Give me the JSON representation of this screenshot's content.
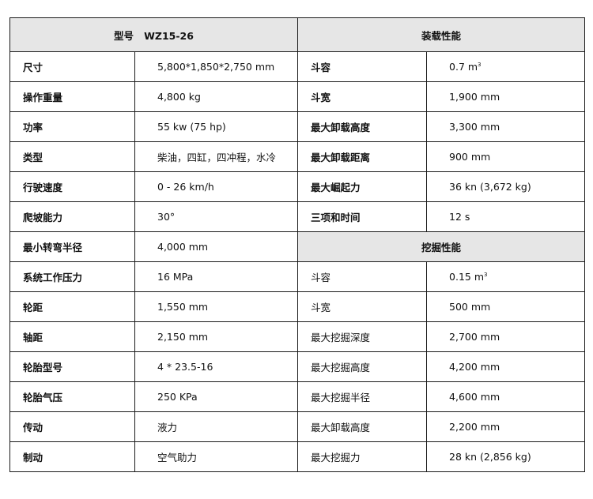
{
  "left_header": {
    "label": "型号",
    "model": "WZ15-26"
  },
  "loading_header": "装载性能",
  "digging_header": "挖掘性能",
  "general_specs": [
    {
      "label": "尺寸",
      "value": "5,800*1,850*2,750 mm"
    },
    {
      "label": "操作重量",
      "value": "4,800 kg"
    },
    {
      "label": "功率",
      "value": "55 kw (75 hp)"
    },
    {
      "label": "类型",
      "value": "柴油，四缸，四冲程，水冷"
    },
    {
      "label": "行驶速度",
      "value": "0 - 26 km/h"
    },
    {
      "label": "爬坡能力",
      "value": "30°"
    },
    {
      "label": "最小转弯半径",
      "value": "4,000 mm"
    },
    {
      "label": "系统工作压力",
      "value": "16 MPa"
    },
    {
      "label": "轮距",
      "value": "1,550 mm"
    },
    {
      "label": "轴距",
      "value": "2,150 mm"
    },
    {
      "label": "轮胎型号",
      "value": "4 * 23.5-16"
    },
    {
      "label": "轮胎气压",
      "value": "250 KPa"
    },
    {
      "label": "传动",
      "value": "液力"
    },
    {
      "label": "制动",
      "value": "空气助力"
    }
  ],
  "loading_specs": [
    {
      "label": "斗容",
      "value": "0.7 m",
      "sup": "3"
    },
    {
      "label": "斗宽",
      "value": "1,900 mm"
    },
    {
      "label": "最大卸载高度",
      "value": "3,300 mm"
    },
    {
      "label": "最大卸载距离",
      "value": "900 mm"
    },
    {
      "label": "最大崛起力",
      "value": "36 kn (3,672 kg)"
    },
    {
      "label": "三项和时间",
      "value": "12 s"
    }
  ],
  "digging_specs": [
    {
      "label": "斗容",
      "value": "0.15 m",
      "sup": "3"
    },
    {
      "label": "斗宽",
      "value": "500 mm"
    },
    {
      "label": "最大挖掘深度",
      "value": "2,700 mm"
    },
    {
      "label": "最大挖掘高度",
      "value": "4,200 mm"
    },
    {
      "label": "最大挖掘半径",
      "value": "4,600 mm"
    },
    {
      "label": "最大卸载高度",
      "value": "2,200 mm"
    },
    {
      "label": "最大挖掘力",
      "value": "28 kn (2,856 kg)"
    }
  ]
}
